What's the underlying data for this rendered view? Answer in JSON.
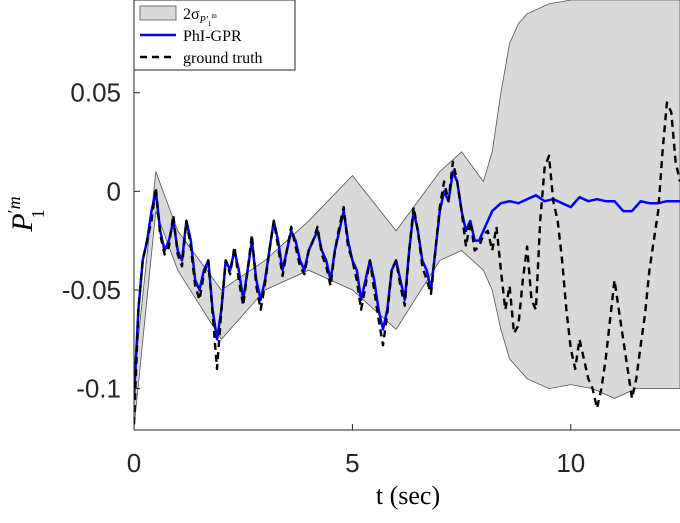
{
  "chart_data": {
    "type": "line",
    "xlabel": "t (sec)",
    "ylabel": "P'_1^m",
    "xlim": [
      0,
      12.5
    ],
    "ylim": [
      -0.121,
      0.097
    ],
    "x_ticks": [
      0,
      5,
      10
    ],
    "x_tick_labels": [
      "0",
      "5",
      "10"
    ],
    "y_ticks": [
      0.05,
      0,
      -0.05,
      -0.1
    ],
    "y_tick_labels": [
      "0.05",
      "0",
      "-0.05",
      "-0.1"
    ],
    "grid": false,
    "legend_position": "top-left",
    "legend": [
      {
        "label": "2σ_{P'_1^m}",
        "style": "fill",
        "color": "#d9d9d9"
      },
      {
        "label": "PhI-GPR",
        "style": "solid",
        "color": "#0000ff"
      },
      {
        "label": "ground truth",
        "style": "dashed",
        "color": "#000000"
      }
    ],
    "series": [
      {
        "name": "PhI-GPR",
        "color": "#0000ff",
        "x": [
          0.0,
          0.1,
          0.2,
          0.3,
          0.4,
          0.5,
          0.6,
          0.7,
          0.8,
          0.9,
          1.0,
          1.1,
          1.2,
          1.3,
          1.4,
          1.5,
          1.6,
          1.7,
          1.8,
          1.9,
          2.0,
          2.1,
          2.2,
          2.3,
          2.4,
          2.5,
          2.6,
          2.7,
          2.8,
          2.9,
          3.0,
          3.1,
          3.2,
          3.3,
          3.4,
          3.5,
          3.6,
          3.7,
          3.8,
          3.9,
          4.0,
          4.1,
          4.2,
          4.3,
          4.4,
          4.5,
          4.6,
          4.7,
          4.8,
          4.9,
          5.0,
          5.1,
          5.2,
          5.3,
          5.4,
          5.5,
          5.6,
          5.7,
          5.8,
          5.9,
          6.0,
          6.1,
          6.2,
          6.3,
          6.4,
          6.5,
          6.6,
          6.7,
          6.8,
          6.9,
          7.0,
          7.1,
          7.2,
          7.3,
          7.4,
          7.5,
          7.6,
          7.7,
          7.8,
          7.9,
          8.0,
          8.2,
          8.4,
          8.6,
          8.8,
          9.0,
          9.2,
          9.4,
          9.6,
          9.8,
          10.0,
          10.2,
          10.4,
          10.6,
          10.8,
          11.0,
          11.2,
          11.4,
          11.6,
          11.8,
          12.0,
          12.2,
          12.5
        ],
        "y": [
          -0.105,
          -0.06,
          -0.035,
          -0.025,
          -0.01,
          0.0,
          -0.02,
          -0.03,
          -0.025,
          -0.015,
          -0.03,
          -0.035,
          -0.015,
          -0.025,
          -0.045,
          -0.05,
          -0.04,
          -0.035,
          -0.06,
          -0.075,
          -0.06,
          -0.035,
          -0.04,
          -0.03,
          -0.04,
          -0.055,
          -0.04,
          -0.025,
          -0.045,
          -0.055,
          -0.045,
          -0.03,
          -0.015,
          -0.025,
          -0.04,
          -0.03,
          -0.02,
          -0.025,
          -0.035,
          -0.04,
          -0.03,
          -0.025,
          -0.02,
          -0.03,
          -0.035,
          -0.045,
          -0.03,
          -0.02,
          -0.01,
          -0.025,
          -0.035,
          -0.04,
          -0.055,
          -0.045,
          -0.035,
          -0.045,
          -0.06,
          -0.07,
          -0.06,
          -0.04,
          -0.035,
          -0.045,
          -0.055,
          -0.03,
          -0.01,
          -0.02,
          -0.035,
          -0.04,
          -0.05,
          -0.03,
          -0.01,
          0.0,
          -0.005,
          0.01,
          0.005,
          -0.01,
          -0.02,
          -0.015,
          -0.025,
          -0.025,
          -0.02,
          -0.01,
          -0.006,
          -0.005,
          -0.006,
          -0.004,
          -0.002,
          -0.005,
          -0.004,
          -0.006,
          -0.008,
          -0.003,
          -0.005,
          -0.004,
          -0.005,
          -0.005,
          -0.01,
          -0.01,
          -0.005,
          -0.006,
          -0.006,
          -0.005,
          -0.005
        ]
      },
      {
        "name": "ground truth",
        "color": "#000000",
        "x": [
          0.0,
          0.1,
          0.2,
          0.3,
          0.4,
          0.5,
          0.6,
          0.7,
          0.8,
          0.9,
          1.0,
          1.1,
          1.2,
          1.3,
          1.4,
          1.5,
          1.6,
          1.7,
          1.8,
          1.9,
          2.0,
          2.1,
          2.2,
          2.3,
          2.4,
          2.5,
          2.6,
          2.7,
          2.8,
          2.9,
          3.0,
          3.1,
          3.2,
          3.3,
          3.4,
          3.5,
          3.6,
          3.7,
          3.8,
          3.9,
          4.0,
          4.1,
          4.2,
          4.3,
          4.4,
          4.5,
          4.6,
          4.7,
          4.8,
          4.9,
          5.0,
          5.1,
          5.2,
          5.3,
          5.4,
          5.5,
          5.6,
          5.7,
          5.8,
          5.9,
          6.0,
          6.1,
          6.2,
          6.3,
          6.4,
          6.5,
          6.6,
          6.7,
          6.8,
          6.9,
          7.0,
          7.1,
          7.2,
          7.3,
          7.4,
          7.5,
          7.6,
          7.7,
          7.8,
          7.9,
          8.0,
          8.1,
          8.2,
          8.3,
          8.4,
          8.5,
          8.6,
          8.7,
          8.8,
          8.9,
          9.0,
          9.1,
          9.2,
          9.3,
          9.4,
          9.5,
          9.6,
          9.7,
          9.8,
          9.9,
          10.0,
          10.1,
          10.2,
          10.3,
          10.4,
          10.5,
          10.6,
          10.7,
          10.8,
          10.9,
          11.0,
          11.1,
          11.2,
          11.3,
          11.4,
          11.5,
          11.6,
          11.7,
          11.8,
          11.9,
          12.0,
          12.1,
          12.2,
          12.3,
          12.4,
          12.5
        ],
        "y": [
          -0.118,
          -0.06,
          -0.035,
          -0.025,
          -0.015,
          0.002,
          -0.022,
          -0.032,
          -0.028,
          -0.012,
          -0.032,
          -0.038,
          -0.015,
          -0.028,
          -0.048,
          -0.055,
          -0.042,
          -0.035,
          -0.062,
          -0.09,
          -0.06,
          -0.035,
          -0.042,
          -0.028,
          -0.045,
          -0.058,
          -0.04,
          -0.022,
          -0.048,
          -0.06,
          -0.047,
          -0.03,
          -0.015,
          -0.028,
          -0.043,
          -0.03,
          -0.018,
          -0.028,
          -0.038,
          -0.042,
          -0.03,
          -0.025,
          -0.018,
          -0.032,
          -0.038,
          -0.048,
          -0.03,
          -0.018,
          -0.008,
          -0.028,
          -0.035,
          -0.045,
          -0.06,
          -0.048,
          -0.035,
          -0.05,
          -0.065,
          -0.078,
          -0.062,
          -0.04,
          -0.035,
          -0.048,
          -0.058,
          -0.03,
          -0.008,
          -0.02,
          -0.038,
          -0.045,
          -0.052,
          -0.03,
          -0.008,
          0.005,
          -0.005,
          0.015,
          0.005,
          -0.01,
          -0.028,
          -0.015,
          -0.03,
          -0.028,
          -0.022,
          -0.02,
          -0.03,
          -0.018,
          -0.04,
          -0.06,
          -0.048,
          -0.072,
          -0.068,
          -0.045,
          -0.028,
          -0.055,
          -0.06,
          -0.015,
          0.012,
          0.018,
          -0.005,
          -0.015,
          -0.035,
          -0.06,
          -0.08,
          -0.09,
          -0.075,
          -0.085,
          -0.095,
          -0.1,
          -0.11,
          -0.1,
          -0.085,
          -0.065,
          -0.045,
          -0.06,
          -0.075,
          -0.09,
          -0.105,
          -0.095,
          -0.078,
          -0.062,
          -0.04,
          -0.025,
          -0.01,
          0.02,
          0.045,
          0.04,
          0.015,
          0.005
        ]
      }
    ],
    "band": {
      "name": "2σ",
      "color": "#d9d9d9",
      "x": [
        0.0,
        0.5,
        1.0,
        2.0,
        3.0,
        4.0,
        5.0,
        6.0,
        7.0,
        7.5,
        8.0,
        8.2,
        8.4,
        8.6,
        8.8,
        9.0,
        9.5,
        10.0,
        10.5,
        11.0,
        11.5,
        12.0,
        12.5
      ],
      "upper": [
        -0.095,
        0.01,
        -0.02,
        -0.05,
        -0.035,
        -0.015,
        0.008,
        -0.02,
        0.01,
        0.02,
        0.005,
        0.02,
        0.05,
        0.075,
        0.085,
        0.09,
        0.095,
        0.097,
        0.097,
        0.097,
        0.097,
        0.097,
        0.097
      ],
      "lower": [
        -0.12,
        -0.01,
        -0.04,
        -0.075,
        -0.05,
        -0.04,
        -0.05,
        -0.07,
        -0.035,
        -0.03,
        -0.04,
        -0.05,
        -0.07,
        -0.085,
        -0.09,
        -0.095,
        -0.1,
        -0.098,
        -0.1,
        -0.105,
        -0.1,
        -0.1,
        -0.1
      ]
    }
  }
}
